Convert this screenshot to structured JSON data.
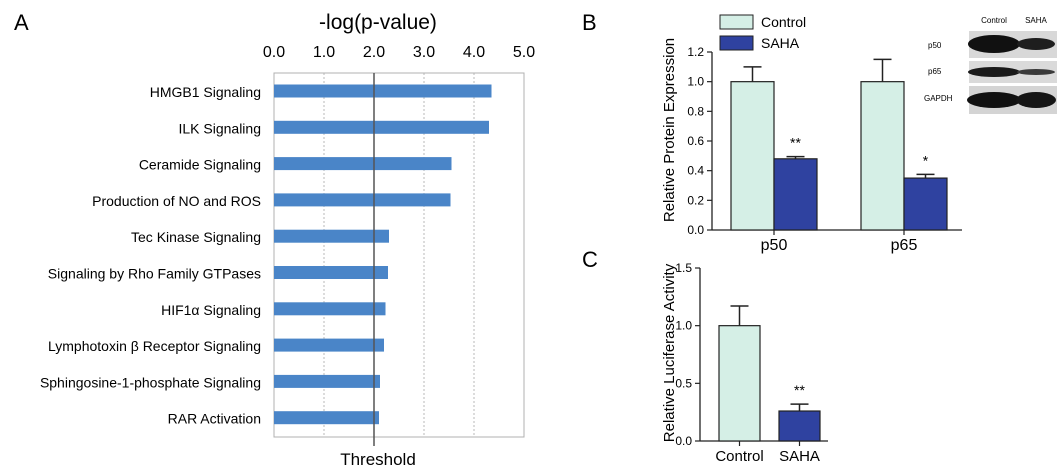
{
  "panels": {
    "a": {
      "letter": "A"
    },
    "b": {
      "letter": "B"
    },
    "c": {
      "letter": "C"
    }
  },
  "chart_data": [
    {
      "type": "bar",
      "orientation": "horizontal",
      "panel": "A",
      "xlabel": "-log(p-value)",
      "xlim": [
        0,
        5.0
      ],
      "x_ticks": [
        "0.0",
        "1.0",
        "2.0",
        "3.0",
        "4.0",
        "5.0"
      ],
      "grid": true,
      "threshold": 2.0,
      "threshold_label": "Threshold",
      "bar_color": "#4a85c8",
      "categories": [
        "HMGB1 Signaling",
        "ILK Signaling",
        "Ceramide Signaling",
        "Production of NO and ROS",
        "Tec Kinase Signaling",
        "Signaling by Rho Family GTPases",
        "HIF1α Signaling",
        "Lymphotoxin β Receptor Signaling",
        "Sphingosine-1-phosphate Signaling",
        "RAR Activation"
      ],
      "values": [
        4.35,
        4.3,
        3.55,
        3.53,
        2.3,
        2.28,
        2.23,
        2.2,
        2.12,
        2.1
      ]
    },
    {
      "type": "bar",
      "panel": "B",
      "ylabel": "Relative Protein Expression",
      "ylim": [
        0,
        1.2
      ],
      "y_ticks": [
        "0.0",
        "0.2",
        "0.4",
        "0.6",
        "0.8",
        "1.0",
        "1.2"
      ],
      "categories": [
        "p50",
        "p65"
      ],
      "series": [
        {
          "name": "Control",
          "color": "#d5efe6",
          "values": [
            1.0,
            1.0
          ],
          "errors": [
            0.1,
            0.15
          ],
          "significance": [
            "",
            ""
          ]
        },
        {
          "name": "SAHA",
          "color": "#2f42a0",
          "values": [
            0.48,
            0.35
          ],
          "errors": [
            0.015,
            0.025
          ],
          "significance": [
            "**",
            "*"
          ]
        }
      ],
      "legend": [
        "Control",
        "SAHA"
      ],
      "legend_position": "top-left",
      "inset_blot": {
        "columns": [
          "Control",
          "SAHA"
        ],
        "rows": [
          "p50",
          "p65",
          "GAPDH"
        ]
      }
    },
    {
      "type": "bar",
      "panel": "C",
      "ylabel": "Relative Luciferase Activity",
      "ylim": [
        0,
        1.5
      ],
      "y_ticks": [
        "0.0",
        "0.5",
        "1.0",
        "1.5"
      ],
      "categories": [
        "Control",
        "SAHA"
      ],
      "colors": [
        "#d5efe6",
        "#2f42a0"
      ],
      "values": [
        1.0,
        0.26
      ],
      "errors": [
        0.17,
        0.06
      ],
      "significance": [
        "",
        "**"
      ]
    }
  ]
}
